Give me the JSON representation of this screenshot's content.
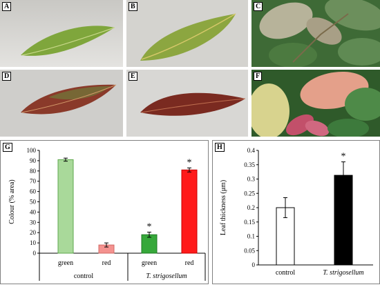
{
  "panels": {
    "a": "A",
    "b": "B",
    "c": "C",
    "d": "D",
    "e": "E",
    "f": "F",
    "g": "G",
    "h": "H"
  },
  "colors": {
    "green_bar": "#a9d99a",
    "red_bar": "#f4928f",
    "treated_green_bar": "#36a83a",
    "treated_red_bar": "#ff1a1a"
  },
  "chart_data": [
    {
      "type": "bar",
      "ylabel": "Colour (% area)",
      "ylim": [
        0,
        100
      ],
      "yticks": [
        "0",
        "10",
        "20",
        "30",
        "40",
        "50",
        "60",
        "70",
        "80",
        "90",
        "100"
      ],
      "categories": [
        "green",
        "red",
        "green",
        "red"
      ],
      "groups": [
        "control",
        "T. strigosellum"
      ],
      "values": [
        91,
        8,
        18,
        81
      ],
      "errors": [
        1.5,
        2,
        2.5,
        2
      ],
      "significant": [
        "",
        "",
        "*",
        "*"
      ]
    },
    {
      "type": "bar",
      "ylabel": "Leaf thickness (μm)",
      "ylim": [
        0,
        0.4
      ],
      "yticks": [
        "0",
        "0.05",
        "0.1",
        "0.15",
        "0.2",
        "0.25",
        "0.3",
        "0.35",
        "0.4"
      ],
      "categories": [
        "control",
        "T. strigosellum"
      ],
      "values": [
        0.2,
        0.313
      ],
      "errors": [
        0.035,
        0.047
      ],
      "significant": [
        "",
        "*"
      ]
    }
  ]
}
